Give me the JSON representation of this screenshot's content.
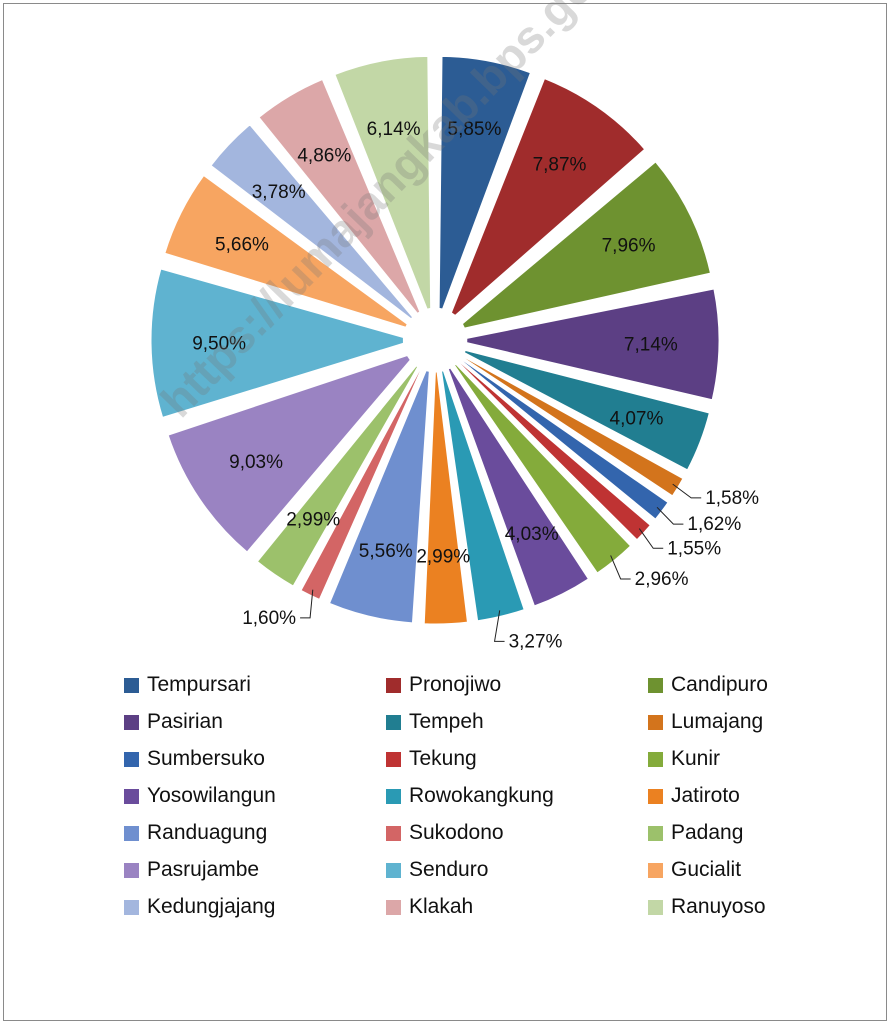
{
  "watermark": "https://lumajangkab.bps.go.id",
  "chart_data": {
    "type": "pie",
    "title": "",
    "exploded": true,
    "legend_position": "bottom",
    "categories": [
      "Tempursari",
      "Pronojiwo",
      "Candipuro",
      "Pasirian",
      "Tempeh",
      "Lumajang",
      "Sumbersuko",
      "Tekung",
      "Kunir",
      "Yosowilangun",
      "Rowokangkung",
      "Jatiroto",
      "Randuagung",
      "Sukodono",
      "Padang",
      "Pasrujambe",
      "Senduro",
      "Gucialit",
      "Kedungjajang",
      "Klakah",
      "Ranuyoso"
    ],
    "values": [
      5.85,
      7.87,
      7.96,
      7.14,
      4.07,
      1.58,
      1.62,
      1.55,
      2.96,
      4.03,
      3.27,
      2.99,
      5.56,
      1.6,
      2.99,
      9.03,
      9.5,
      5.66,
      3.78,
      4.86,
      6.14
    ],
    "labels": [
      "5,85%",
      "7,87%",
      "7,96%",
      "7,14%",
      "4,07%",
      "1,58%",
      "1,62%",
      "1,55%",
      "2,96%",
      "4,03%",
      "3,27%",
      "2,99%",
      "5,56%",
      "1,60%",
      "2,99%",
      "9,03%",
      "9,50%",
      "5,66%",
      "3,78%",
      "4,86%",
      "6,14%"
    ],
    "colors": [
      "#2c5c94",
      "#a02c2c",
      "#6e9230",
      "#5c3f84",
      "#217e91",
      "#d3741c",
      "#3365ad",
      "#bf3333",
      "#84ab3b",
      "#6a4c9c",
      "#2a9ab4",
      "#eb8121",
      "#6f8fcf",
      "#d36565",
      "#9cc16b",
      "#9a83c2",
      "#5fb3d0",
      "#f7a561",
      "#a3b6de",
      "#dca7a8",
      "#c2d7a6"
    ]
  }
}
